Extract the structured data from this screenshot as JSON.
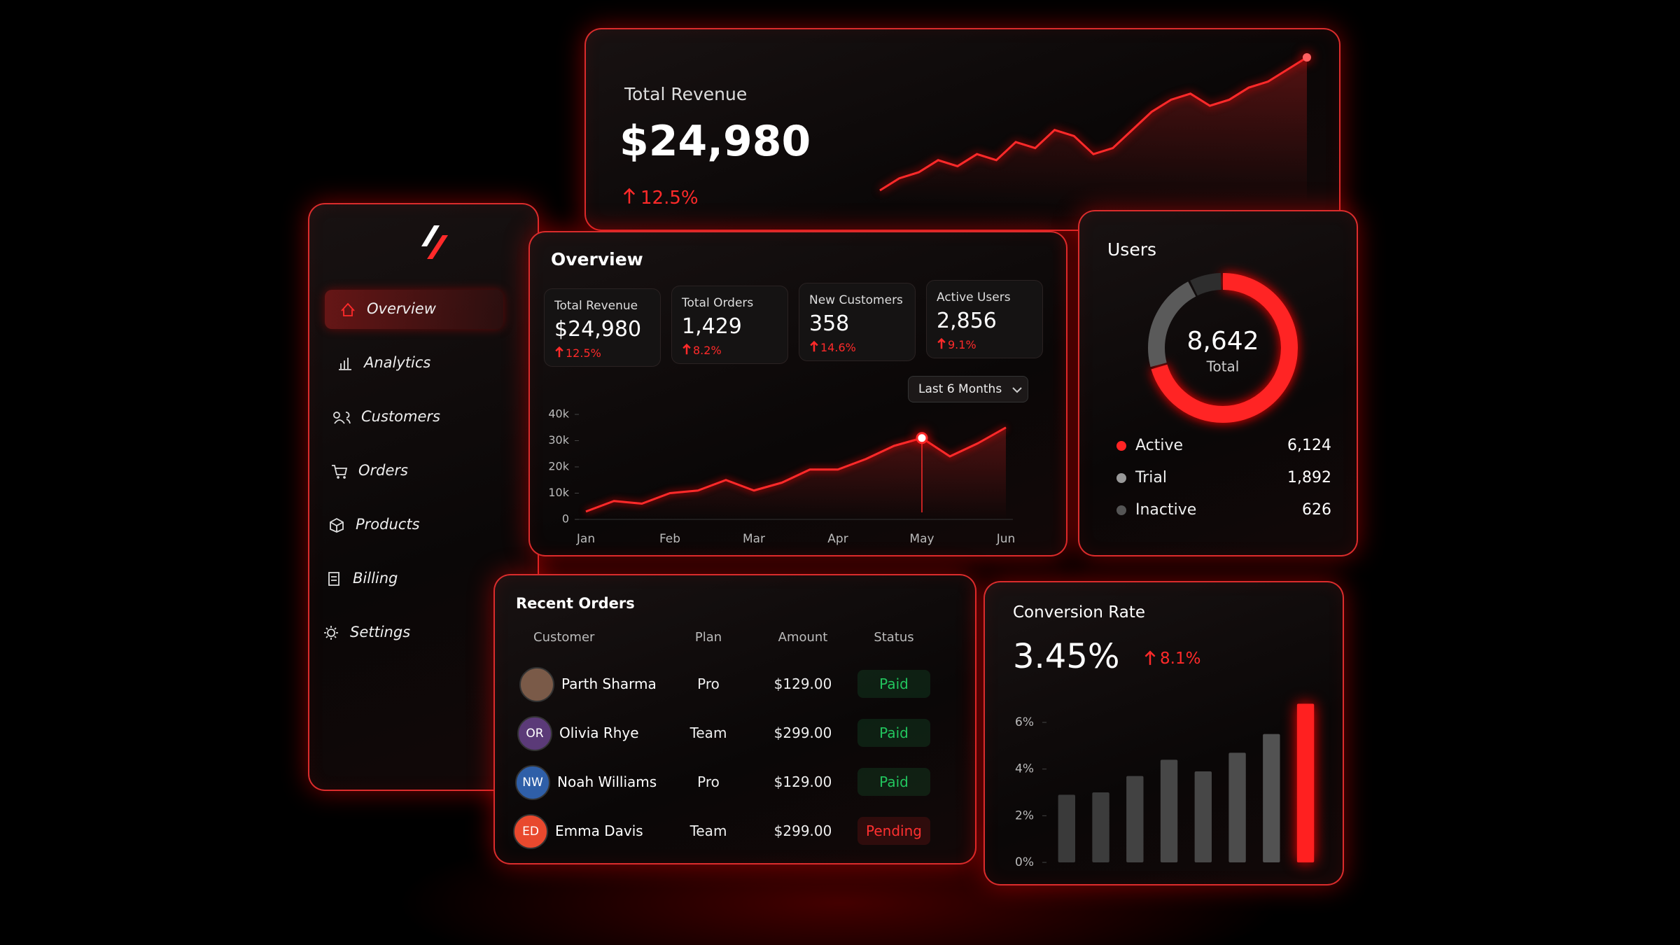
{
  "sidebar": {
    "nav": [
      "Overview",
      "Analytics",
      "Customers",
      "Orders",
      "Products",
      "Billing",
      "Settings"
    ]
  },
  "revenue_card": {
    "title": "Total Revenue",
    "value": "$24,980",
    "change": "12.5%"
  },
  "overview_card": {
    "title": "Overview",
    "kpis": [
      {
        "label": "Total Revenue",
        "value": "$24,980",
        "change": "12.5%"
      },
      {
        "label": "Total Orders",
        "value": "1,429",
        "change": "8.2%"
      },
      {
        "label": "New Customers",
        "value": "358",
        "change": "14.6%"
      },
      {
        "label": "Active Users",
        "value": "2,856",
        "change": "9.1%"
      }
    ],
    "range_selector": "Last 6 Months"
  },
  "users_card": {
    "title": "Users",
    "total": "8,642",
    "total_label": "Total"
  },
  "orders_card": {
    "title": "Recent Orders",
    "headers": [
      "Customer",
      "Plan",
      "Amount",
      "Status"
    ],
    "rows": [
      {
        "initials": null,
        "avatar_color": "#7a5a48",
        "customer": "Parth Sharma",
        "plan": "Pro",
        "amount": "$129.00",
        "status": "Paid",
        "status_color": "#22c55e"
      },
      {
        "initials": "OR",
        "avatar_color": "#5b3a78",
        "customer": "Olivia Rhye",
        "plan": "Team",
        "amount": "$299.00",
        "status": "Paid",
        "status_color": "#22c55e"
      },
      {
        "initials": "NW",
        "avatar_color": "#2f5fa8",
        "customer": "Noah Williams",
        "plan": "Pro",
        "amount": "$129.00",
        "status": "Paid",
        "status_color": "#22c55e"
      },
      {
        "initials": "ED",
        "avatar_color": "#e8492e",
        "customer": "Emma Davis",
        "plan": "Team",
        "amount": "$299.00",
        "status": "Pending",
        "status_color": "#ff3030"
      }
    ]
  },
  "conversion_card": {
    "title": "Conversion Rate",
    "value": "3.45%",
    "change": "8.1%"
  },
  "chart_data": [
    {
      "type": "sparkline",
      "color": "#ff2a2a",
      "values": [
        25,
        35,
        40,
        50,
        45,
        55,
        50,
        65,
        60,
        75,
        70,
        55,
        60,
        75,
        90,
        100,
        105,
        95,
        100,
        110,
        115,
        125,
        135
      ]
    },
    {
      "type": "line",
      "color": "#ff2a2a",
      "categories": [
        "Jan",
        null,
        null,
        "Feb",
        null,
        null,
        "Mar",
        null,
        null,
        "Apr",
        null,
        null,
        "May",
        null,
        null,
        "Jun"
      ],
      "values": [
        3000,
        7000,
        6000,
        10000,
        11000,
        15000,
        11000,
        14000,
        19000,
        19000,
        23000,
        28000,
        31000,
        24000,
        29000,
        35000
      ],
      "ylim": [
        0,
        40000
      ],
      "yticks": [
        0,
        {
          "value": 10000,
          "label": "10k"
        },
        {
          "value": 20000,
          "label": "20k"
        },
        {
          "value": 30000,
          "label": "30k"
        },
        {
          "value": 40000,
          "label": "40k"
        }
      ],
      "highlight": 12
    },
    {
      "type": "donut",
      "categories": [
        "Active",
        "Trial",
        "Inactive"
      ],
      "values": [
        6124,
        1892,
        626
      ],
      "value_labels": [
        "6,124",
        "1,892",
        "626"
      ],
      "colors": [
        "#ff2424",
        "#5a5a5a",
        "#2e2e2e"
      ]
    },
    {
      "type": "bar",
      "values": [
        2.9,
        3.0,
        3.7,
        4.4,
        3.9,
        4.7,
        5.5,
        6.8
      ],
      "colors": [
        "#3a3a3a",
        "#3c3c3c",
        "#424242",
        "#474747",
        "#474747",
        "#4c4c4c",
        "#525252",
        "#ff2020"
      ],
      "ylim": [
        0,
        7.2
      ],
      "yticks": [
        {
          "value": 0,
          "label": "0%"
        },
        {
          "value": 2,
          "label": "2%"
        },
        {
          "value": 4,
          "label": "4%"
        },
        {
          "value": 6,
          "label": "6%"
        }
      ]
    }
  ]
}
